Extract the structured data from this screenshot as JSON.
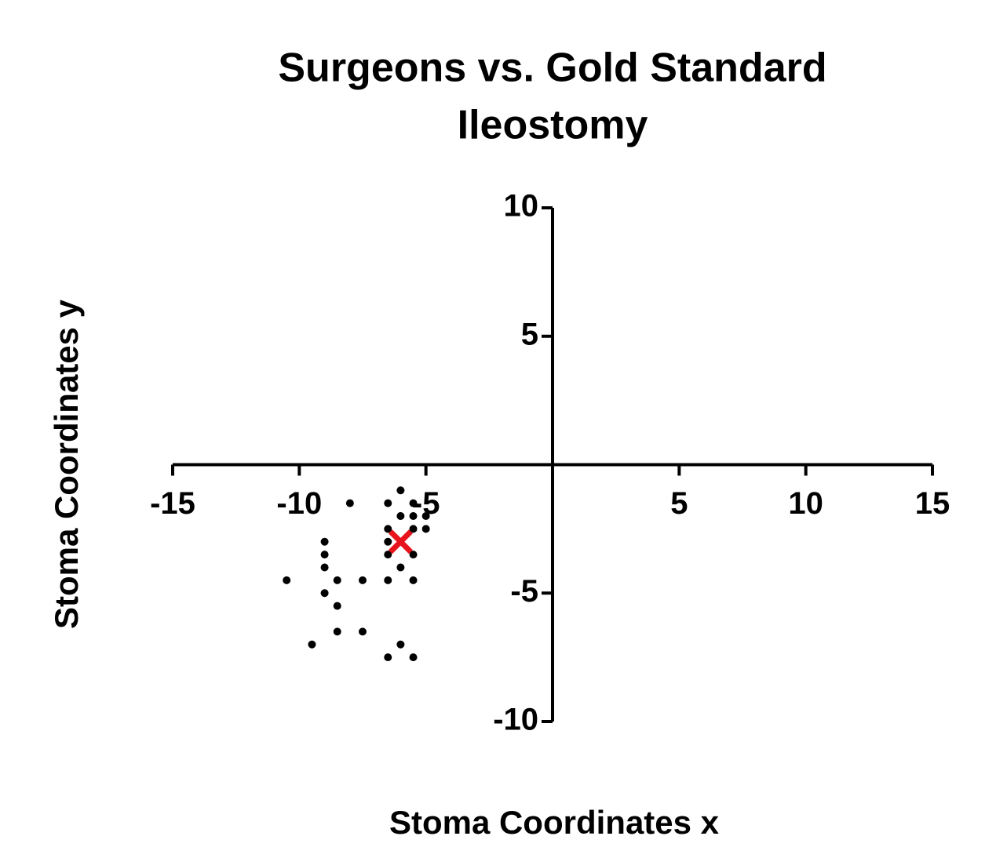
{
  "chart_data": {
    "type": "scatter",
    "title": [
      "Surgeons vs. Gold Standard",
      "Ileostomy"
    ],
    "x_label": "Stoma Coordinates x",
    "y_label": "Stoma Coordinates y",
    "xlim": [
      -15,
      15
    ],
    "ylim": [
      -10,
      10
    ],
    "xticks": [
      -15,
      -10,
      -5,
      5,
      10,
      15
    ],
    "yticks": [
      10,
      5,
      -5,
      -10
    ],
    "axes_cross_at_origin": true,
    "series": [
      {
        "color": "#000000",
        "marker": "dot",
        "x": [
          -8,
          -6.5,
          -6,
          -5.5,
          -5,
          -5.5,
          -6,
          -5,
          -5.5,
          -6.5,
          -9,
          -6.5,
          -9,
          -6.5,
          -5.5,
          -9,
          -6,
          -10.5,
          -8.5,
          -7.5,
          -6.5,
          -5.5,
          -9,
          -8.5,
          -8.5,
          -7.5,
          -9.5,
          -6,
          -6.5,
          -5.5
        ],
        "values": [
          -1.5,
          -1.5,
          -1,
          -1.5,
          -2,
          -2,
          -2,
          -2.5,
          -2.5,
          -2.5,
          -3,
          -3,
          -3.5,
          -3.5,
          -3.5,
          -4,
          -4,
          -4.5,
          -4.5,
          -4.5,
          -4.5,
          -4.5,
          -5,
          -5.5,
          -6.5,
          -6.5,
          -7,
          -7,
          -7.5,
          -7.5
        ]
      },
      {
        "color": "#e8141c",
        "marker": "x",
        "x": [
          -6
        ],
        "values": [
          -3
        ]
      }
    ]
  }
}
